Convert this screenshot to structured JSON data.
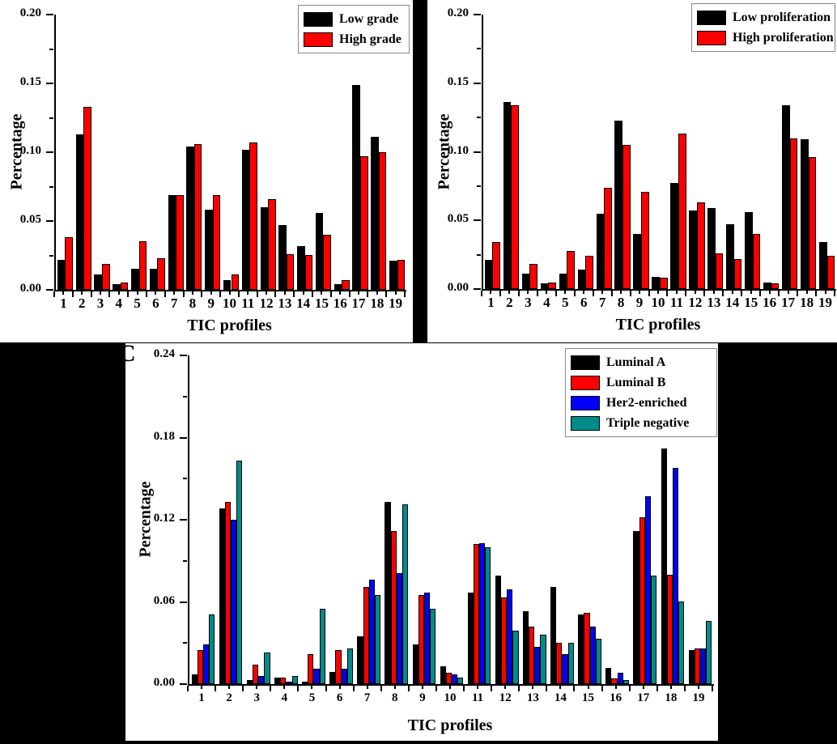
{
  "figure": {
    "panel_c_label": "C",
    "colors": {
      "black": "#000000",
      "red": "#FF0000",
      "blue": "#0000FF",
      "teal": "#008B8B",
      "background_band": "#000000"
    }
  },
  "chart_data": [
    {
      "id": "grade",
      "type": "bar",
      "title": "",
      "xlabel": "TIC profiles",
      "ylabel": "Percentage",
      "ylim": [
        0,
        0.2
      ],
      "ytick_labels": [
        "0.00",
        "0.05",
        "0.10",
        "0.15",
        "0.20"
      ],
      "grid": false,
      "legend_position": "top-right",
      "categories": [
        "1",
        "2",
        "3",
        "4",
        "5",
        "6",
        "7",
        "8",
        "9",
        "10",
        "11",
        "12",
        "13",
        "14",
        "15",
        "16",
        "17",
        "18",
        "19"
      ],
      "series": [
        {
          "name": "Low grade",
          "color": "#000000",
          "values": [
            0.022,
            0.113,
            0.011,
            0.004,
            0.015,
            0.015,
            0.069,
            0.104,
            0.058,
            0.007,
            0.102,
            0.06,
            0.047,
            0.032,
            0.056,
            0.004,
            0.149,
            0.111,
            0.021
          ]
        },
        {
          "name": "High grade",
          "color": "#FF0000",
          "values": [
            0.038,
            0.133,
            0.019,
            0.005,
            0.035,
            0.023,
            0.069,
            0.106,
            0.069,
            0.011,
            0.107,
            0.066,
            0.026,
            0.025,
            0.04,
            0.007,
            0.097,
            0.1,
            0.022
          ]
        }
      ]
    },
    {
      "id": "proliferation",
      "type": "bar",
      "title": "",
      "xlabel": "TIC profiles",
      "ylabel": "Percentage",
      "ylim": [
        0,
        0.2
      ],
      "ytick_labels": [
        "0.00",
        "0.05",
        "0.10",
        "0.15",
        "0.20"
      ],
      "grid": false,
      "legend_position": "top-right",
      "categories": [
        "1",
        "2",
        "3",
        "4",
        "5",
        "6",
        "7",
        "8",
        "9",
        "10",
        "11",
        "12",
        "13",
        "14",
        "15",
        "16",
        "17",
        "18",
        "19"
      ],
      "series": [
        {
          "name": "Low proliferation",
          "color": "#000000",
          "values": [
            0.021,
            0.136,
            0.011,
            0.004,
            0.011,
            0.014,
            0.055,
            0.123,
            0.04,
            0.009,
            0.077,
            0.057,
            0.059,
            0.047,
            0.056,
            0.005,
            0.134,
            0.109,
            0.034
          ]
        },
        {
          "name": "High proliferation",
          "color": "#FF0000",
          "values": [
            0.034,
            0.134,
            0.018,
            0.005,
            0.028,
            0.024,
            0.074,
            0.105,
            0.071,
            0.008,
            0.113,
            0.063,
            0.026,
            0.022,
            0.04,
            0.004,
            0.11,
            0.096,
            0.024
          ]
        }
      ]
    },
    {
      "id": "subtype",
      "type": "bar",
      "title": "",
      "xlabel": "TIC profiles",
      "ylabel": "Percentage",
      "ylim": [
        0,
        0.24
      ],
      "ytick_labels": [
        "0.00",
        "0.06",
        "0.12",
        "0.18",
        "0.24"
      ],
      "grid": false,
      "legend_position": "top-right",
      "panel_label": "C",
      "categories": [
        "1",
        "2",
        "3",
        "4",
        "5",
        "6",
        "7",
        "8",
        "9",
        "10",
        "11",
        "12",
        "13",
        "14",
        "15",
        "16",
        "17",
        "18",
        "19"
      ],
      "series": [
        {
          "name": "Luminal A",
          "color": "#000000",
          "values": [
            0.007,
            0.128,
            0.003,
            0.005,
            0.002,
            0.009,
            0.035,
            0.133,
            0.029,
            0.013,
            0.067,
            0.079,
            0.053,
            0.071,
            0.051,
            0.012,
            0.112,
            0.172,
            0.025
          ]
        },
        {
          "name": "Luminal B",
          "color": "#FF0000",
          "values": [
            0.025,
            0.133,
            0.014,
            0.005,
            0.022,
            0.025,
            0.071,
            0.112,
            0.065,
            0.008,
            0.102,
            0.063,
            0.042,
            0.03,
            0.052,
            0.004,
            0.122,
            0.08,
            0.026
          ]
        },
        {
          "name": "Her2-enriched",
          "color": "#0000FF",
          "values": [
            0.029,
            0.12,
            0.006,
            0.002,
            0.011,
            0.011,
            0.076,
            0.081,
            0.067,
            0.007,
            0.103,
            0.069,
            0.027,
            0.022,
            0.042,
            0.008,
            0.137,
            0.158,
            0.026
          ]
        },
        {
          "name": "Triple negative",
          "color": "#008B8B",
          "values": [
            0.051,
            0.163,
            0.023,
            0.006,
            0.055,
            0.026,
            0.065,
            0.131,
            0.055,
            0.005,
            0.1,
            0.039,
            0.036,
            0.03,
            0.033,
            0.003,
            0.079,
            0.06,
            0.046
          ]
        }
      ]
    }
  ]
}
